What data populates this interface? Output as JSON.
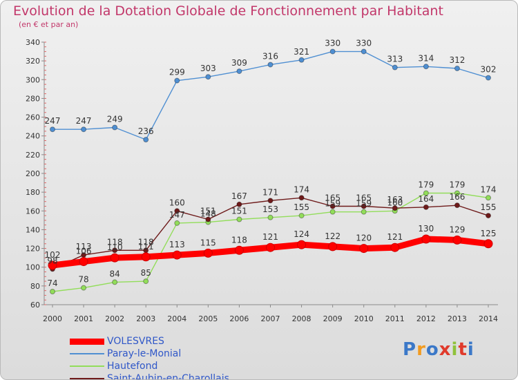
{
  "chart_data": {
    "type": "line",
    "title": "Evolution de la Dotation Globale de Fonctionnement par Habitant",
    "subtitle": "(en € et par an)",
    "categories": [
      "2000",
      "2001",
      "2002",
      "2003",
      "2004",
      "2005",
      "2006",
      "2007",
      "2008",
      "2009",
      "2010",
      "2011",
      "2012",
      "2013",
      "2014"
    ],
    "ylim": [
      60,
      340
    ],
    "yticks": [
      60,
      80,
      100,
      120,
      140,
      160,
      180,
      200,
      220,
      240,
      260,
      280,
      300,
      320,
      340
    ],
    "grid": false,
    "legend_position": "bottom-left",
    "series": [
      {
        "name": "VOLESVRES",
        "color": "#ff0000",
        "values": [
          102,
          106,
          110,
          111,
          113,
          115,
          118,
          121,
          124,
          122,
          120,
          121,
          130,
          129,
          125
        ]
      },
      {
        "name": "Paray-le-Monial",
        "color": "#4f8fd2",
        "values": [
          247,
          247,
          249,
          236,
          299,
          303,
          309,
          316,
          321,
          330,
          330,
          313,
          314,
          312,
          302
        ]
      },
      {
        "name": "Hautefond",
        "color": "#92dd5a",
        "values": [
          74,
          78,
          84,
          85,
          147,
          148,
          151,
          153,
          155,
          159,
          159,
          160,
          179,
          179,
          174
        ]
      },
      {
        "name": "Saint-Aubin-en-Charollais",
        "color": "#6e1a1a",
        "values": [
          98,
          113,
          118,
          118,
          160,
          151,
          167,
          171,
          174,
          165,
          165,
          163,
          164,
          166,
          155
        ]
      }
    ]
  },
  "logo": {
    "text": "Proxiti",
    "colors": [
      "#3b78c8",
      "#f29b20",
      "#3b78c8",
      "#e03a2b",
      "#8fc23b",
      "#e03a2b",
      "#3b78c8"
    ]
  }
}
